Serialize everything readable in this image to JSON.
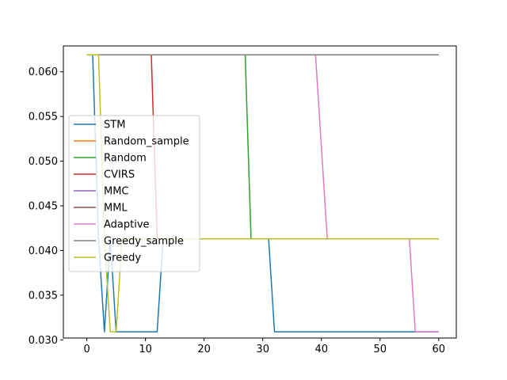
{
  "chart_data": {
    "type": "line",
    "title": "",
    "xlabel": "",
    "ylabel": "",
    "xlim": [
      -4,
      63
    ],
    "ylim": [
      0.0302,
      0.0629
    ],
    "xticks": [
      0,
      10,
      20,
      30,
      40,
      50,
      60
    ],
    "xtick_labels": [
      "0",
      "10",
      "20",
      "30",
      "40",
      "50",
      "60"
    ],
    "yticks": [
      0.03,
      0.035,
      0.04,
      0.045,
      0.05,
      0.055,
      0.06
    ],
    "ytick_labels": [
      "0.030",
      "0.035",
      "0.040",
      "0.045",
      "0.050",
      "0.055",
      "0.060"
    ],
    "grid": false,
    "legend_position": "center-left",
    "series": [
      {
        "name": "STM",
        "color": "#1f77b4",
        "points": [
          [
            0,
            0.0619
          ],
          [
            1,
            0.0619
          ],
          [
            2,
            0.0413
          ],
          [
            3,
            0.0309
          ],
          [
            4,
            0.0413
          ],
          [
            5,
            0.0309
          ],
          [
            12,
            0.0309
          ],
          [
            13,
            0.0413
          ],
          [
            31,
            0.0413
          ],
          [
            32,
            0.0309
          ],
          [
            60,
            0.0309
          ]
        ]
      },
      {
        "name": "Random_sample",
        "color": "#ff7f0e",
        "points": [
          [
            0,
            0.0619
          ],
          [
            60,
            0.0619
          ]
        ]
      },
      {
        "name": "Random",
        "color": "#2ca02c",
        "points": [
          [
            0,
            0.0619
          ],
          [
            27,
            0.0619
          ],
          [
            28,
            0.0413
          ],
          [
            60,
            0.0413
          ]
        ]
      },
      {
        "name": "CVIRS",
        "color": "#d62728",
        "points": [
          [
            0,
            0.0619
          ],
          [
            11,
            0.0619
          ],
          [
            12,
            0.0413
          ],
          [
            60,
            0.0413
          ]
        ]
      },
      {
        "name": "MMC",
        "color": "#9467bd",
        "points": [
          [
            0,
            0.0619
          ],
          [
            60,
            0.0619
          ]
        ]
      },
      {
        "name": "MML",
        "color": "#8c564b",
        "points": [
          [
            0,
            0.0619
          ],
          [
            60,
            0.0619
          ]
        ]
      },
      {
        "name": "Adaptive",
        "color": "#e377c2",
        "points": [
          [
            0,
            0.0619
          ],
          [
            39,
            0.0619
          ],
          [
            41,
            0.0413
          ],
          [
            55,
            0.0413
          ],
          [
            56,
            0.0309
          ],
          [
            60,
            0.0309
          ]
        ]
      },
      {
        "name": "Greedy_sample",
        "color": "#7f7f7f",
        "points": [
          [
            0,
            0.0619
          ],
          [
            60,
            0.0619
          ]
        ]
      },
      {
        "name": "Greedy",
        "color": "#bcbd22",
        "points": [
          [
            0,
            0.0619
          ],
          [
            2,
            0.0619
          ],
          [
            3,
            0.0413
          ],
          [
            4,
            0.0309
          ],
          [
            5,
            0.0309
          ],
          [
            6,
            0.0413
          ],
          [
            60,
            0.0413
          ]
        ]
      }
    ]
  }
}
